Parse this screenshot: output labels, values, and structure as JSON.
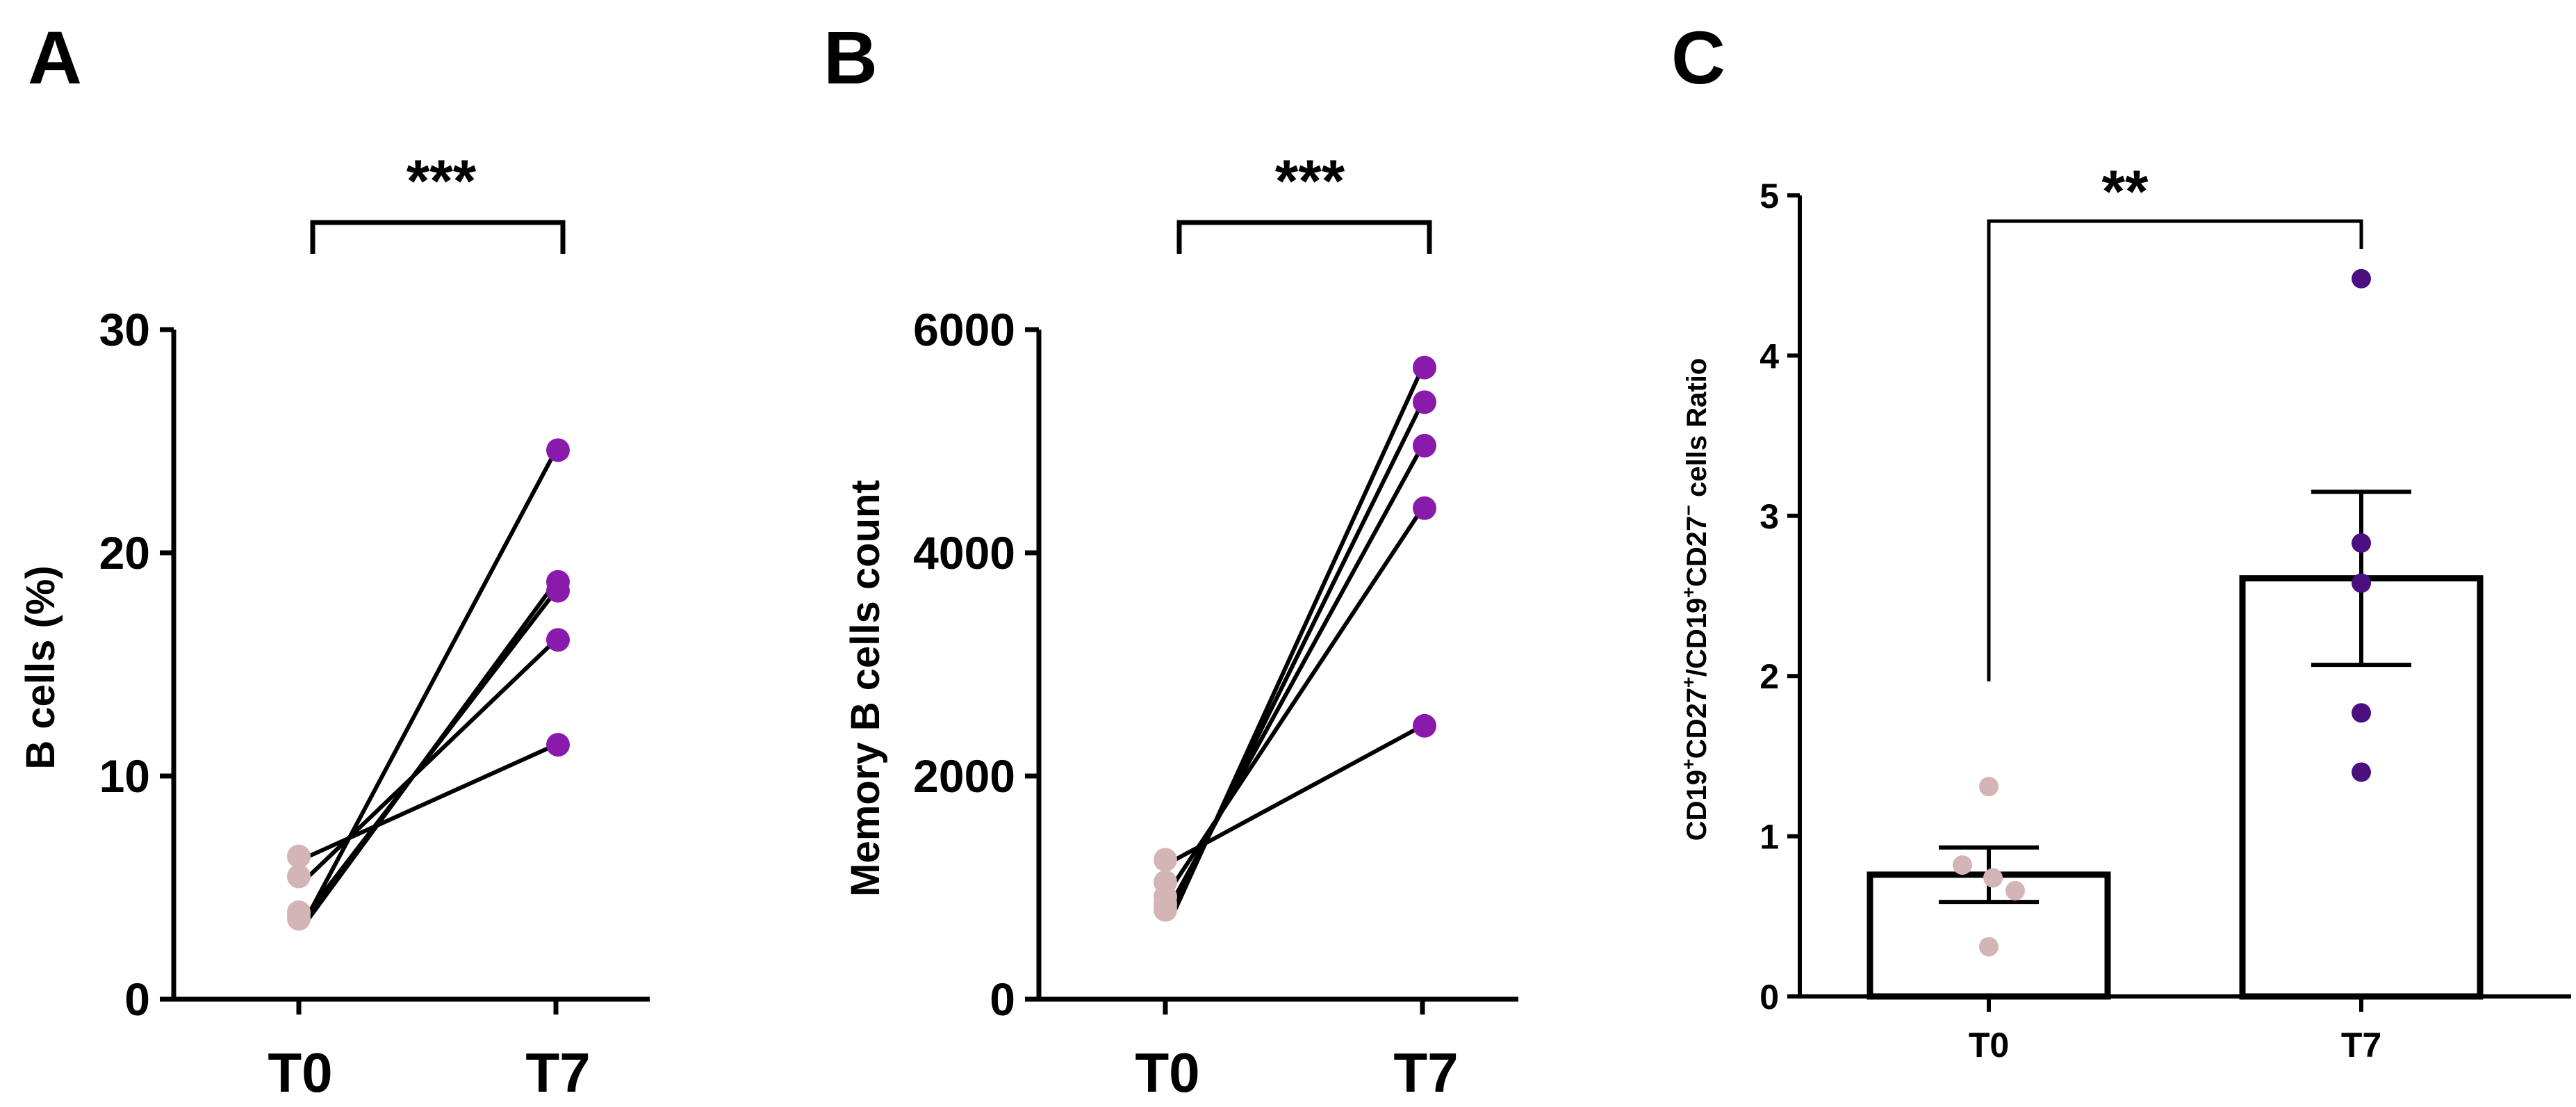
{
  "colors": {
    "t0": "#d4b5b5",
    "t7_ab": "#8a1aab",
    "t7_c": "#4a1080",
    "line": "#000000"
  },
  "chart_data": [
    {
      "panel": "A",
      "type": "scatter",
      "ylabel": "B cells (%)",
      "ylim": [
        0,
        30
      ],
      "yticks": [
        0,
        10,
        20,
        30
      ],
      "categories": [
        "T0",
        "T7"
      ],
      "significance": "***",
      "paired": [
        [
          6.4,
          11.4
        ],
        [
          5.5,
          16.1
        ],
        [
          3.9,
          18.3
        ],
        [
          3.6,
          18.7
        ],
        [
          3.8,
          24.6
        ]
      ]
    },
    {
      "panel": "B",
      "type": "scatter",
      "ylabel": "Memory B cells count",
      "ylim": [
        0,
        6000
      ],
      "yticks": [
        0,
        2000,
        4000,
        6000
      ],
      "categories": [
        "T0",
        "T7"
      ],
      "significance": "***",
      "paired": [
        [
          1250,
          2450
        ],
        [
          1050,
          4400
        ],
        [
          920,
          4960
        ],
        [
          850,
          5350
        ],
        [
          800,
          5660
        ]
      ]
    },
    {
      "panel": "C",
      "type": "bar",
      "ylabel_parts": [
        "CD19",
        "+",
        "CD27",
        "+",
        "/CD19",
        "+",
        "CD27",
        "−",
        " cells Ratio"
      ],
      "ylim": [
        0,
        5
      ],
      "yticks": [
        0,
        1,
        2,
        3,
        4,
        5
      ],
      "categories": [
        "T0",
        "T7"
      ],
      "significance": "**",
      "bars": [
        {
          "category": "T0",
          "mean": 0.76,
          "sem": 0.17,
          "points": [
            1.31,
            0.82,
            0.74,
            0.66,
            0.31
          ]
        },
        {
          "category": "T7",
          "mean": 2.61,
          "sem": 0.54,
          "points": [
            4.48,
            2.83,
            2.58,
            1.77,
            1.4
          ]
        }
      ]
    }
  ]
}
